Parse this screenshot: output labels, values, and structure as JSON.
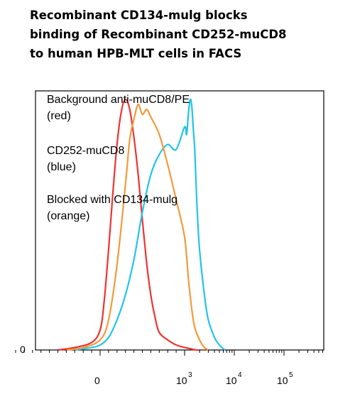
{
  "title_lines": [
    "Recombinant CD134-mulg blocks",
    "binding of Recombinant CD252-muCD8",
    "to human HPB-MLT cells in FACS"
  ],
  "annotations": [
    {
      "line1": "Background anti-muCD8/PE",
      "line2": "(red)"
    },
    {
      "line1": "CD252-muCD8",
      "line2": "(blue)"
    },
    {
      "line1": "Blocked with CD134-mulg",
      "line2": "(orange)"
    }
  ],
  "y_tick_label": "0",
  "x_tick_labels": [
    {
      "base": "0",
      "exp": ""
    },
    {
      "base": "10",
      "exp": "3"
    },
    {
      "base": "10",
      "exp": "4"
    },
    {
      "base": "10",
      "exp": "5"
    }
  ],
  "colors": {
    "red": "#ee3333",
    "orange": "#f39a3a",
    "blue": "#22c4e8"
  },
  "chart_data": {
    "type": "line",
    "title": "Recombinant CD134-mulg blocks binding of Recombinant CD252-muCD8 to human HPB-MLT cells in FACS",
    "xlabel": "",
    "ylabel": "",
    "x_scale": "biexponential",
    "x_ticks": [
      "0",
      "10^3",
      "10^4",
      "10^5"
    ],
    "ylim": [
      0,
      100
    ],
    "grid": false,
    "series": [
      {
        "name": "Background anti-muCD8/PE",
        "color": "red",
        "x": [
          -500,
          -300,
          -100,
          0,
          50,
          100,
          150,
          200,
          250,
          300,
          350,
          400,
          450,
          500,
          550,
          600,
          650,
          700,
          800,
          900,
          1000,
          1300,
          1700,
          2000
        ],
        "y": [
          0,
          1,
          3,
          8,
          20,
          40,
          62,
          82,
          95,
          100,
          96,
          85,
          70,
          52,
          35,
          22,
          13,
          7,
          4,
          2,
          1,
          0.5,
          0,
          0
        ]
      },
      {
        "name": "CD252-muCD8",
        "color": "blue",
        "x": [
          -300,
          -100,
          0,
          100,
          200,
          300,
          400,
          500,
          600,
          700,
          800,
          900,
          1000,
          1100,
          1200,
          1300,
          1400,
          1500,
          1600,
          1700,
          1800,
          2000,
          2500,
          3000,
          4000,
          5000,
          6500
        ],
        "y": [
          0,
          1,
          2,
          5,
          12,
          22,
          36,
          55,
          70,
          78,
          82,
          80,
          89,
          86,
          95,
          100,
          97,
          88,
          80,
          67,
          55,
          40,
          22,
          12,
          5,
          2,
          0
        ]
      },
      {
        "name": "Blocked with CD134-mulg",
        "color": "orange",
        "x": [
          -400,
          -200,
          0,
          100,
          200,
          300,
          350,
          400,
          450,
          500,
          550,
          600,
          700,
          800,
          900,
          1000,
          1200,
          1400,
          1600,
          2000,
          2500,
          3000
        ],
        "y": [
          0,
          1,
          4,
          12,
          34,
          66,
          84,
          92,
          98,
          94,
          96,
          93,
          86,
          74,
          60,
          45,
          28,
          16,
          9,
          4,
          1,
          0
        ]
      }
    ]
  }
}
